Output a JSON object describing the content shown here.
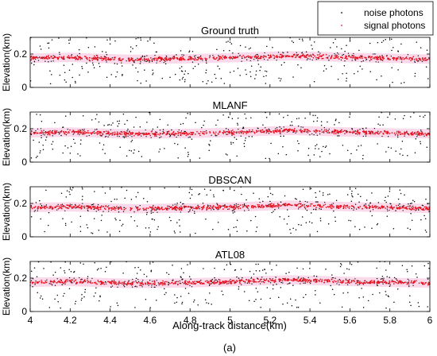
{
  "figure": {
    "caption": "(a)",
    "xlabel": "Along-track distance(km)",
    "legend": [
      {
        "label": "noise photons",
        "color": "#000000"
      },
      {
        "label": "signal photons",
        "color": "#e8101e"
      }
    ]
  },
  "chart_data": [
    {
      "type": "scatter",
      "title": "Ground truth",
      "ylabel": "Elevation(km)",
      "xlim": [
        4,
        6
      ],
      "ylim": [
        0,
        0.3
      ],
      "xticks": [
        "4",
        "4.2",
        "4.4",
        "4.6",
        "4.8",
        "5",
        "5.2",
        "5.4",
        "5.6",
        "5.8",
        "6"
      ],
      "yticks": [
        "0",
        "0.2"
      ],
      "series": [
        {
          "name": "noise photons",
          "color": "#000000",
          "y_range": [
            0.02,
            0.3
          ]
        },
        {
          "name": "signal photons",
          "color": "#e8101e",
          "y_profile": [
            [
              4.0,
              0.175
            ],
            [
              4.2,
              0.18
            ],
            [
              4.5,
              0.168
            ],
            [
              4.8,
              0.172
            ],
            [
              5.0,
              0.178
            ],
            [
              5.3,
              0.19
            ],
            [
              5.6,
              0.18
            ],
            [
              6.0,
              0.17
            ]
          ]
        }
      ]
    },
    {
      "type": "scatter",
      "title": "MLANF",
      "ylabel": "Elevation(km)",
      "xlim": [
        4,
        6
      ],
      "ylim": [
        0,
        0.3
      ],
      "xticks": [
        "4",
        "4.2",
        "4.4",
        "4.6",
        "4.8",
        "5",
        "5.2",
        "5.4",
        "5.6",
        "5.8",
        "6"
      ],
      "yticks": [
        "0",
        "0.2"
      ],
      "series": [
        {
          "name": "noise photons",
          "color": "#000000",
          "y_range": [
            0.02,
            0.3
          ]
        },
        {
          "name": "signal photons",
          "color": "#e8101e",
          "y_profile": [
            [
              4.0,
              0.175
            ],
            [
              4.2,
              0.18
            ],
            [
              4.5,
              0.168
            ],
            [
              4.8,
              0.172
            ],
            [
              5.0,
              0.178
            ],
            [
              5.3,
              0.19
            ],
            [
              5.6,
              0.18
            ],
            [
              6.0,
              0.17
            ]
          ]
        }
      ]
    },
    {
      "type": "scatter",
      "title": "DBSCAN",
      "ylabel": "Elevation(km)",
      "xlim": [
        4,
        6
      ],
      "ylim": [
        0,
        0.3
      ],
      "xticks": [
        "4",
        "4.2",
        "4.4",
        "4.6",
        "4.8",
        "5",
        "5.2",
        "5.4",
        "5.6",
        "5.8",
        "6"
      ],
      "yticks": [
        "0",
        "0.2"
      ],
      "series": [
        {
          "name": "noise photons",
          "color": "#000000",
          "y_range": [
            0.02,
            0.3
          ]
        },
        {
          "name": "signal photons",
          "color": "#e8101e",
          "y_profile": [
            [
              4.0,
              0.175
            ],
            [
              4.2,
              0.18
            ],
            [
              4.5,
              0.168
            ],
            [
              4.8,
              0.172
            ],
            [
              5.0,
              0.178
            ],
            [
              5.3,
              0.19
            ],
            [
              5.6,
              0.18
            ],
            [
              6.0,
              0.17
            ]
          ]
        }
      ]
    },
    {
      "type": "scatter",
      "title": "ATL08",
      "ylabel": "Elevation(km)",
      "xlim": [
        4,
        6
      ],
      "ylim": [
        0,
        0.3
      ],
      "xticks": [
        "4",
        "4.2",
        "4.4",
        "4.6",
        "4.8",
        "5",
        "5.2",
        "5.4",
        "5.6",
        "5.8",
        "6"
      ],
      "yticks": [
        "0",
        "0.2"
      ],
      "series": [
        {
          "name": "noise photons",
          "color": "#000000",
          "y_range": [
            0.02,
            0.3
          ]
        },
        {
          "name": "signal photons",
          "color": "#e8101e",
          "y_profile": [
            [
              4.0,
              0.175
            ],
            [
              4.2,
              0.18
            ],
            [
              4.5,
              0.168
            ],
            [
              4.8,
              0.172
            ],
            [
              5.0,
              0.178
            ],
            [
              5.3,
              0.19
            ],
            [
              5.6,
              0.18
            ],
            [
              6.0,
              0.17
            ]
          ]
        }
      ]
    }
  ]
}
